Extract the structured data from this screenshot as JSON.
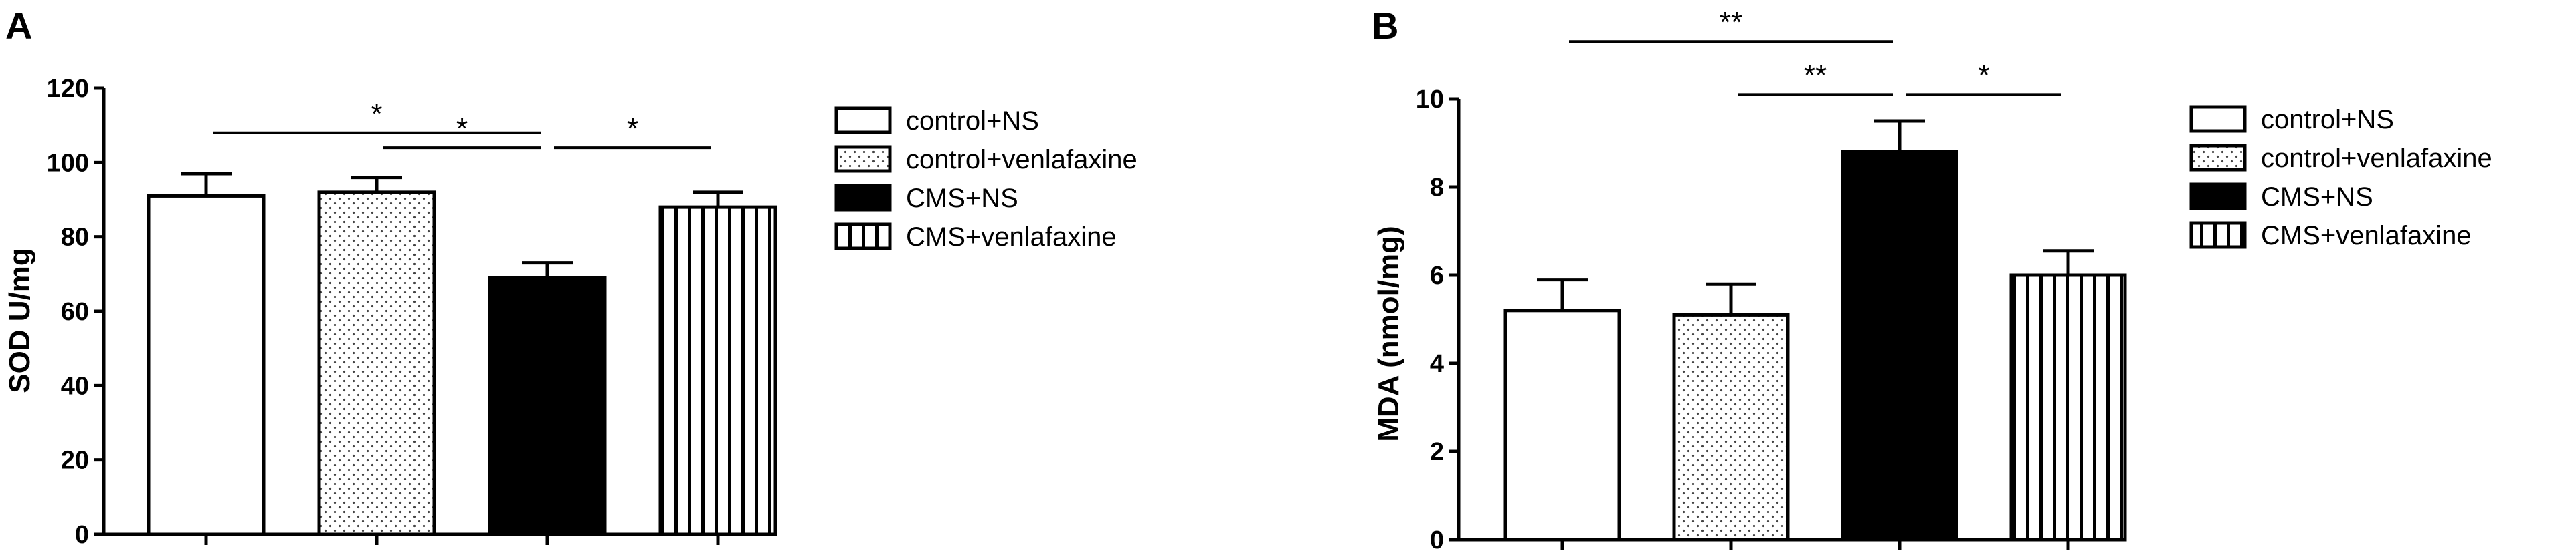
{
  "chart_data": [
    {
      "type": "bar",
      "panel_label": "A",
      "ylabel": "SOD U/mg",
      "xlabel": "",
      "ylim": [
        0,
        120
      ],
      "yticks": [
        0,
        20,
        40,
        60,
        80,
        100,
        120
      ],
      "categories": [
        "control+NS",
        "control+venlafaxine",
        "CMS+NS",
        "CMS+venlafaxine"
      ],
      "values": [
        91,
        92,
        69,
        88
      ],
      "errors": [
        6,
        4,
        4,
        4
      ],
      "fills": [
        "white",
        "dots",
        "black",
        "vertical-lines"
      ],
      "legend": {
        "placement": "right",
        "entries": [
          "control+NS",
          "control+venlafaxine",
          "CMS+NS",
          "CMS+venlafaxine"
        ]
      },
      "significance": [
        {
          "from": 0,
          "to": 2,
          "label": "*",
          "level": 108
        },
        {
          "from": 1,
          "to": 2,
          "label": "*",
          "level": 104
        },
        {
          "from": 2,
          "to": 3,
          "label": "*",
          "level": 104
        }
      ]
    },
    {
      "type": "bar",
      "panel_label": "B",
      "ylabel": "MDA (nmol/mg)",
      "xlabel": "",
      "ylim": [
        0,
        10
      ],
      "yticks": [
        0,
        2,
        4,
        6,
        8,
        10
      ],
      "categories": [
        "control+NS",
        "control+venlafaxine",
        "CMS+NS",
        "CMS+venlafaxine"
      ],
      "values": [
        5.2,
        5.1,
        8.8,
        6.0
      ],
      "errors": [
        0.7,
        0.7,
        0.7,
        0.55
      ],
      "fills": [
        "white",
        "dots",
        "black",
        "vertical-lines"
      ],
      "legend": {
        "placement": "right",
        "entries": [
          "control+NS",
          "control+venlafaxine",
          "CMS+NS",
          "CMS+venlafaxine"
        ]
      },
      "significance": [
        {
          "from": 0,
          "to": 2,
          "label": "**",
          "level": 11.3
        },
        {
          "from": 1,
          "to": 2,
          "label": "**",
          "level": 10.1
        },
        {
          "from": 2,
          "to": 3,
          "label": "*",
          "level": 10.1
        }
      ]
    }
  ]
}
